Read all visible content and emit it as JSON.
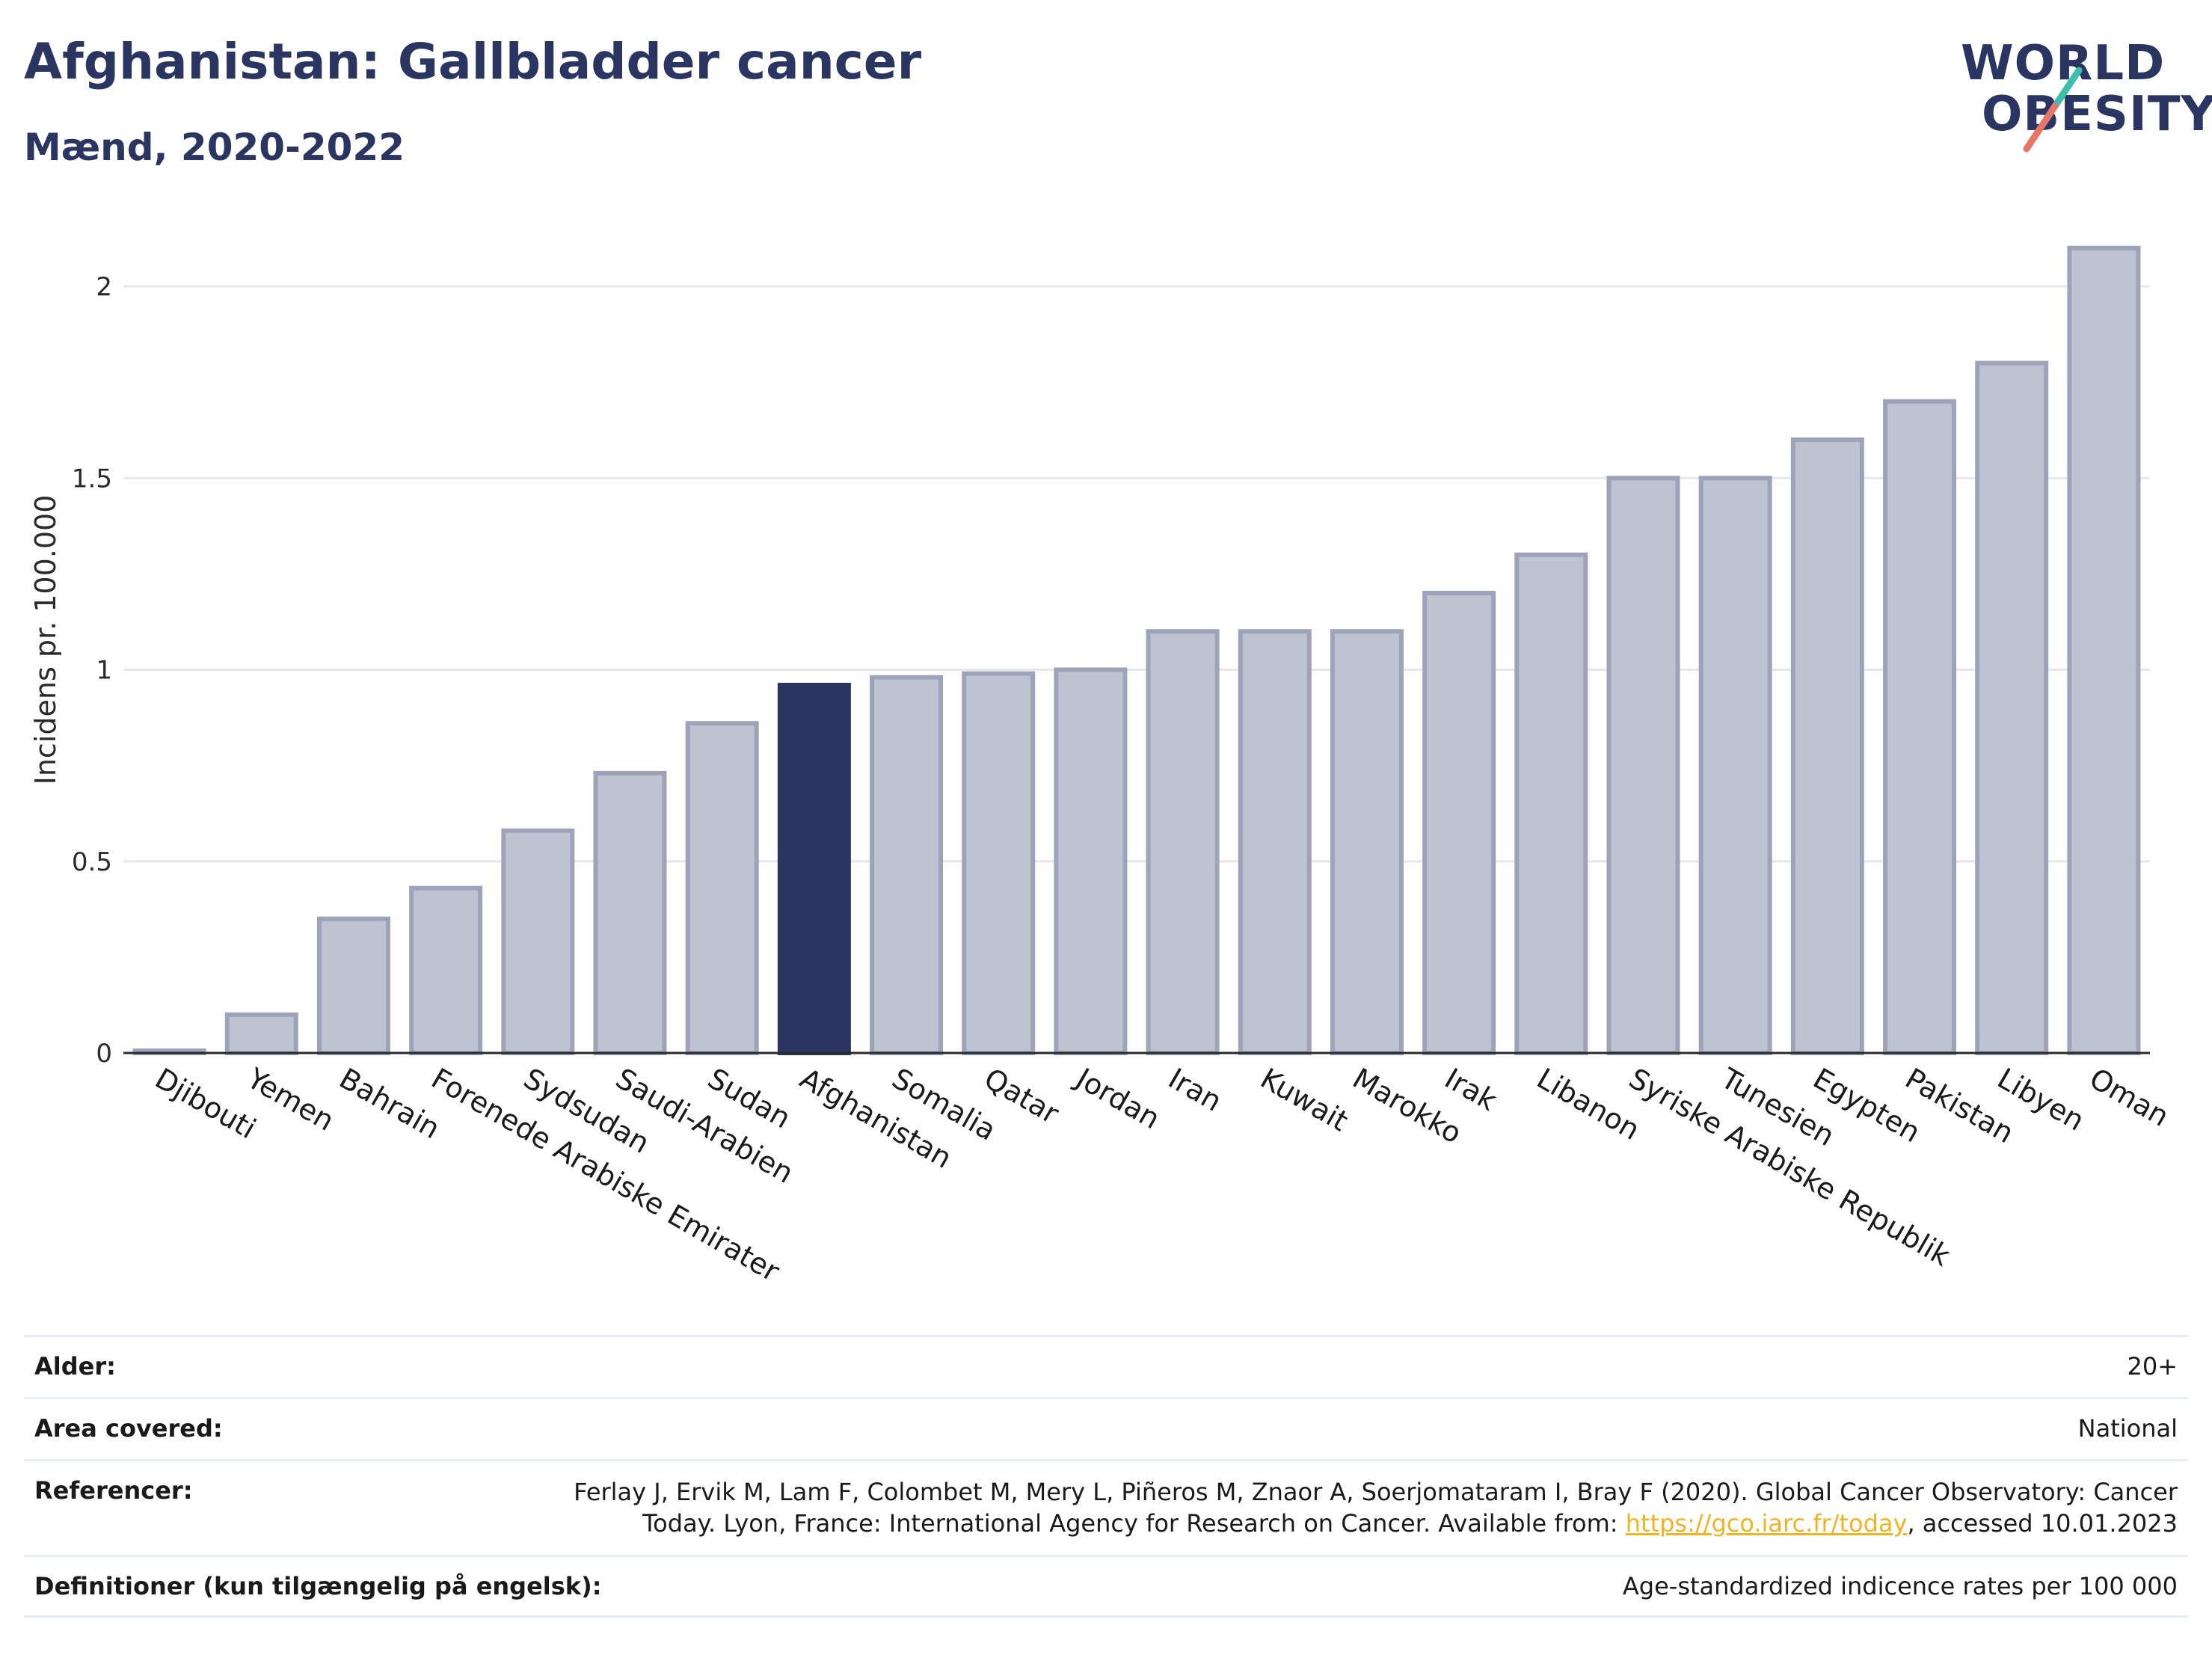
{
  "header": {
    "title": "Afghanistan: Gallbladder cancer",
    "subtitle": "Mænd, 2020-2022"
  },
  "logo": {
    "line1": "WORLD",
    "line2": "OBESITY",
    "colors": {
      "teal": "#3cbfae",
      "coral": "#e8756a"
    }
  },
  "chart_data": {
    "type": "bar",
    "ylabel": "Incidens pr. 100.000",
    "ylim": [
      0,
      2.15
    ],
    "yticks": [
      0,
      0.5,
      1,
      1.5,
      2
    ],
    "ytick_labels": [
      "0",
      "0.5",
      "1",
      "1.5",
      "2"
    ],
    "grid": true,
    "categories": [
      "Djibouti",
      "Yemen",
      "Bahrain",
      "Forenede Arabiske Emirater",
      "Sydsudan",
      "Saudi-Arabien",
      "Sudan",
      "Afghanistan",
      "Somalia",
      "Qatar",
      "Jordan",
      "Iran",
      "Kuwait",
      "Marokko",
      "Irak",
      "Libanon",
      "Syriske Arabiske Republik",
      "Tunesien",
      "Egypten",
      "Pakistan",
      "Libyen",
      "Oman"
    ],
    "values": [
      0.0,
      0.1,
      0.35,
      0.43,
      0.58,
      0.73,
      0.86,
      0.96,
      0.98,
      0.99,
      1.0,
      1.1,
      1.1,
      1.1,
      1.2,
      1.3,
      1.5,
      1.5,
      1.6,
      1.7,
      1.8,
      2.1
    ],
    "highlight": "Afghanistan",
    "colors": {
      "bar": "#bfc2d0",
      "bar_edge": "#9ea3ba",
      "highlight": "#2b3561"
    }
  },
  "meta": {
    "rows": [
      {
        "label": "Alder:",
        "value": "20+"
      },
      {
        "label": "Area covered:",
        "value": "National"
      },
      {
        "label": "Referencer:",
        "value_line1": "Ferlay J, Ervik M, Lam F, Colombet M, Mery L, Piñeros M, Znaor A, Soerjomataram I, Bray F (2020). Global Cancer Observatory: Cancer",
        "value_line2_pre": "Today. Lyon, France: International Agency for Research on Cancer. Available from: ",
        "link": "https://gco.iarc.fr/today",
        "value_line2_post": ", accessed 10.01.2023"
      },
      {
        "label": "Definitioner (kun tilgængelig på engelsk):",
        "value": "Age-standardized indicence rates per 100 000"
      }
    ]
  }
}
